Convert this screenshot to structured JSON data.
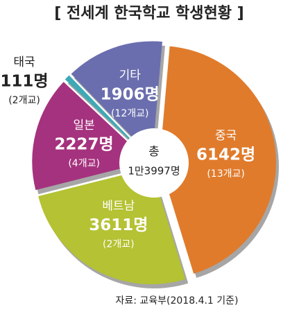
{
  "chart_data": {
    "type": "pie",
    "title": "[ 전세계 한국학교 학생현황 ]",
    "center_label": [
      "총",
      "1만3997명"
    ],
    "source": "자료: 교육부(2018.4.1 기준)",
    "categories": [
      "중국",
      "베트남",
      "일본",
      "태국",
      "기타"
    ],
    "values": [
      6142,
      3611,
      2227,
      111,
      1906
    ],
    "value_labels": [
      "6142명",
      "3611명",
      "2227명",
      "111명",
      "1906명"
    ],
    "schools": [
      "(13개교)",
      "(2개교)",
      "(4개교)",
      "(2개교)",
      "(12개교)"
    ],
    "colors": [
      "#e07b2c",
      "#b4c233",
      "#a5327e",
      "#3fa9b6",
      "#6a6eae"
    ]
  }
}
